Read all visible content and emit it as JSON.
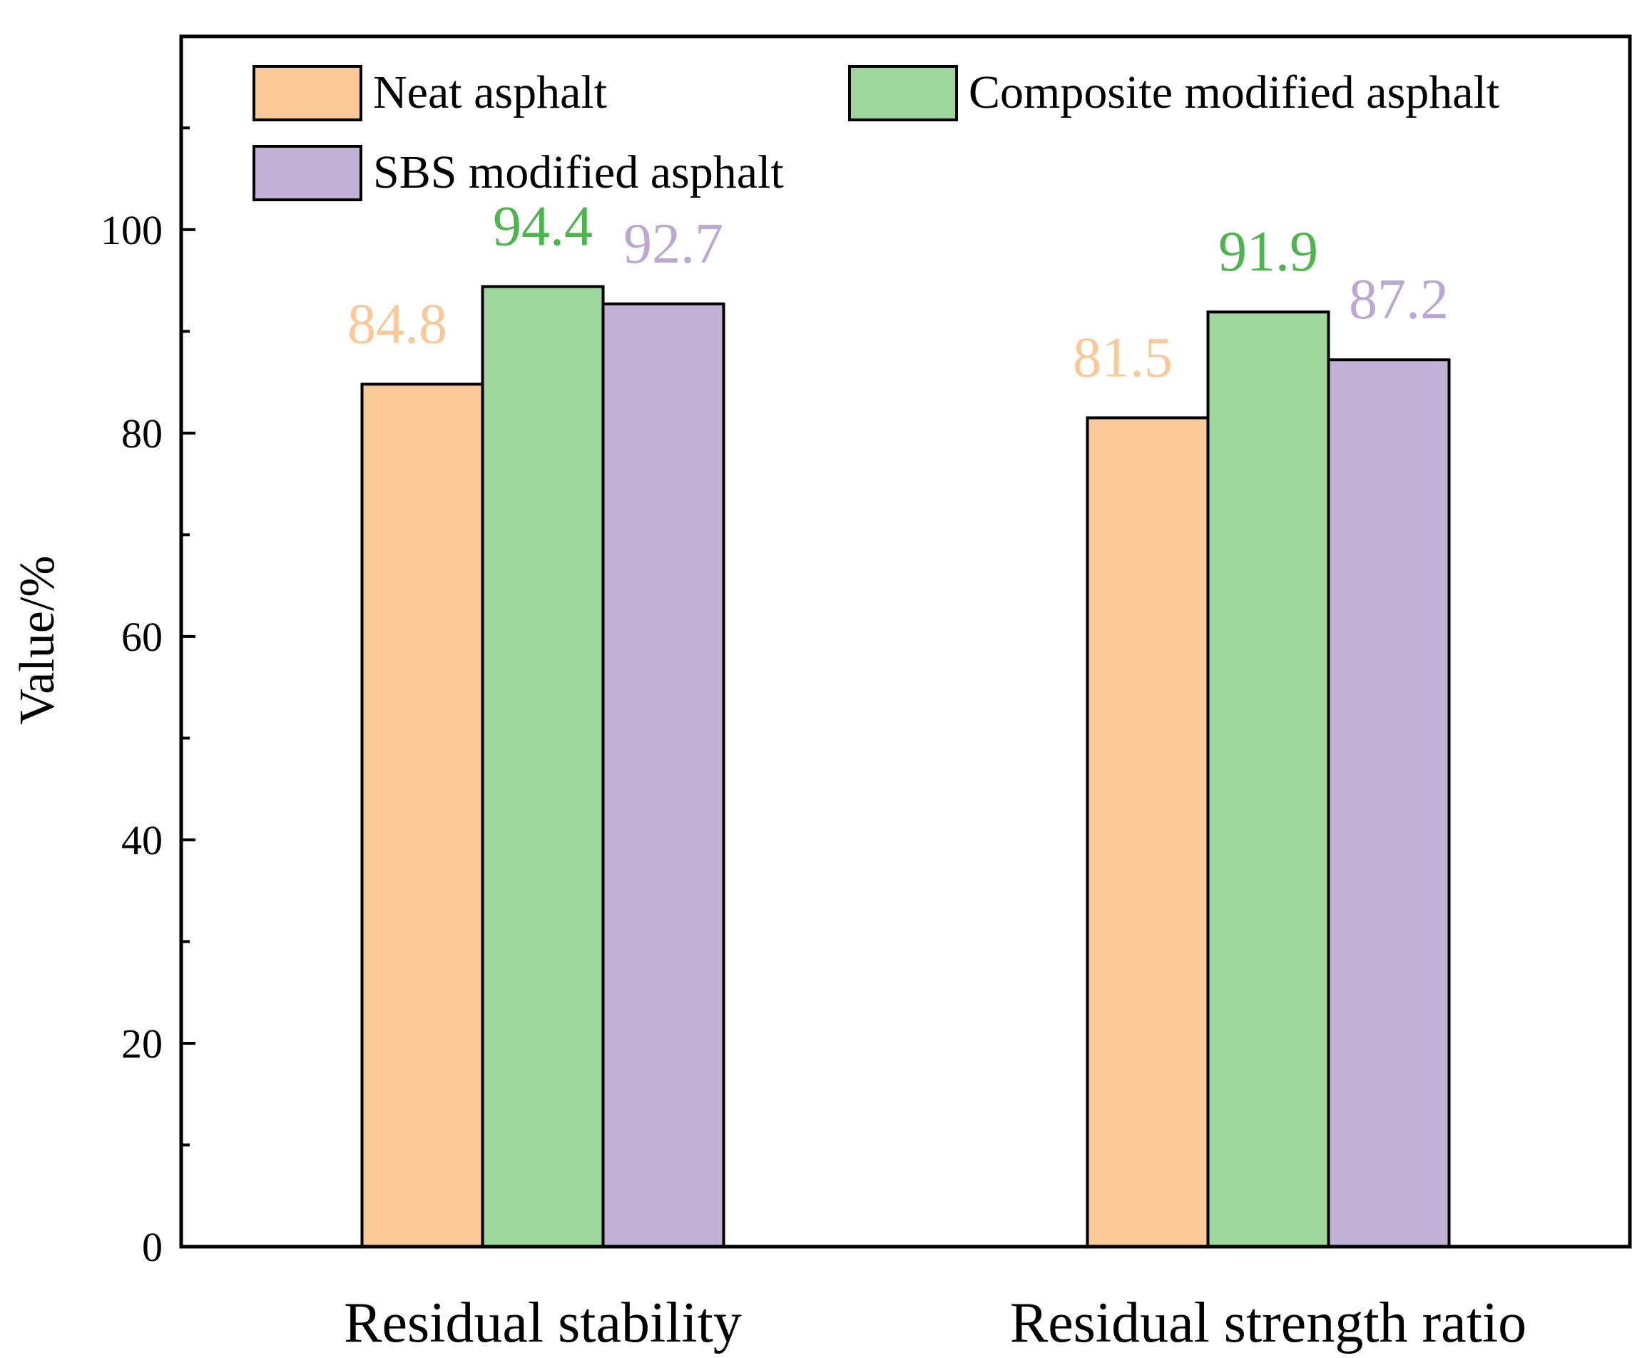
{
  "chart_data": {
    "type": "bar",
    "title": "",
    "xlabel": "",
    "ylabel": "Value/%",
    "ylim": [
      0,
      119
    ],
    "yticks": [
      0,
      20,
      40,
      60,
      80,
      100
    ],
    "ytick_labels": [
      "0",
      "20",
      "40",
      "60",
      "80",
      "100"
    ],
    "categories": [
      "Residual stability",
      "Residual strength ratio"
    ],
    "series": [
      {
        "name": "Neat asphalt",
        "values": [
          84.8,
          81.5
        ],
        "labels": [
          "84.8",
          "81.5"
        ],
        "color": "#FBC897",
        "label_color": "#FBC897"
      },
      {
        "name": "Composite modified asphalt",
        "values": [
          94.4,
          91.9
        ],
        "labels": [
          "94.4",
          "91.9"
        ],
        "color": "#9ED79C",
        "label_color": "#4DB54D"
      },
      {
        "name": "SBS modified asphalt",
        "values": [
          92.7,
          87.2
        ],
        "labels": [
          "92.7",
          "87.2"
        ],
        "color": "#C2B1D6",
        "label_color": "#BBA8D3"
      }
    ],
    "legend_position": "top",
    "grid": false
  }
}
